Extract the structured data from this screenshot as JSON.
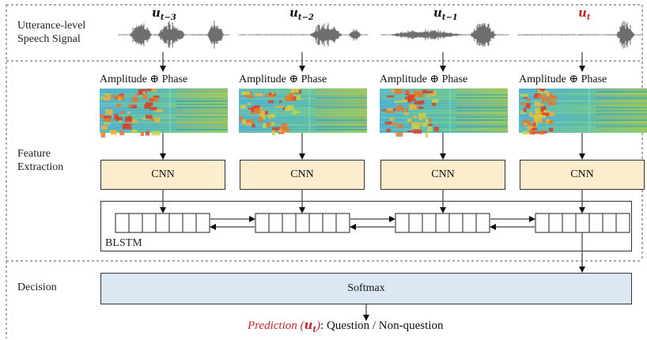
{
  "sections": {
    "speech_label": "Utterance-level\nSpeech Signal",
    "feature_label": "Feature\nExtraction",
    "decision_label": "Decision"
  },
  "utterances": [
    {
      "base": "u",
      "sub": "t−3",
      "color": "#111111"
    },
    {
      "base": "u",
      "sub": "t−2",
      "color": "#111111"
    },
    {
      "base": "u",
      "sub": "t−1",
      "color": "#111111"
    },
    {
      "base": "u",
      "sub": "t",
      "color": "#c0282d"
    }
  ],
  "feature_label_text": "Amplitude ⊕ Phase",
  "cnn_label": "CNN",
  "blstm_label": "BLSTM",
  "softmax_label": "Softmax",
  "prediction": {
    "word": "Prediction",
    "arg_base": "u",
    "arg_sub": "t",
    "suffix": ": Question / Non-question"
  },
  "colors": {
    "cnn_fill": "#fdedcf",
    "softmax_fill": "#dbe8f4",
    "highlight": "#c0282d"
  }
}
